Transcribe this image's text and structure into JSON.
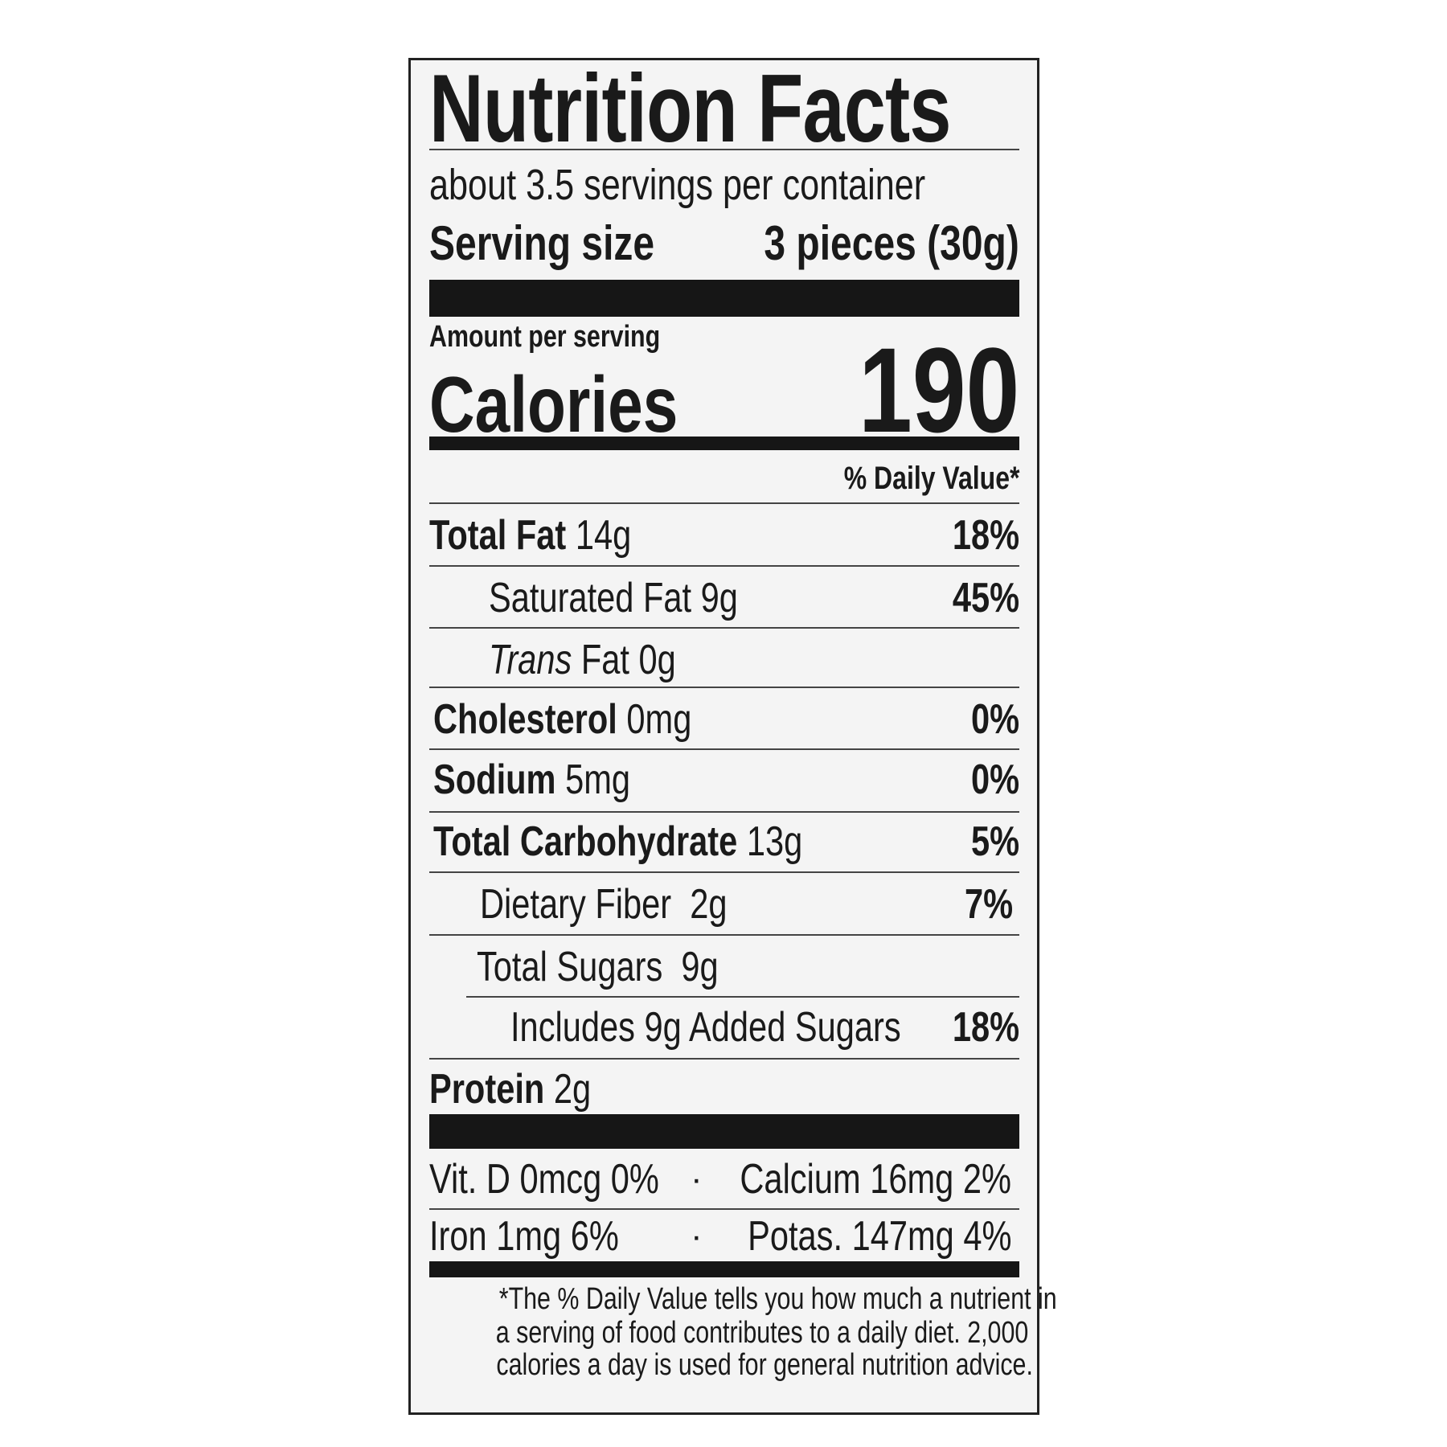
{
  "label": {
    "title": "Nutrition Facts",
    "servings_per_container": "about 3.5 servings per container",
    "serving_size_label": "Serving size",
    "serving_size_value": "3 pieces (30g)",
    "amount_per_serving": "Amount per serving",
    "calories_label": "Calories",
    "calories_value": "190",
    "daily_value_header": "% Daily Value*",
    "nutrients": [
      {
        "name": "Total Fat",
        "amount": "14g",
        "dv": "18%"
      },
      {
        "name": "Saturated Fat",
        "amount": "9g",
        "dv": "45%"
      },
      {
        "name": "Trans",
        "name_suffix": "Fat",
        "amount": "0g",
        "dv": ""
      },
      {
        "name": "Cholesterol",
        "amount": "0mg",
        "dv": "0%"
      },
      {
        "name": "Sodium",
        "amount": "5mg",
        "dv": "0%"
      },
      {
        "name": "Total Carbohydrate",
        "amount": "13g",
        "dv": "5%"
      },
      {
        "name": "Dietary Fiber",
        "amount": "2g",
        "dv": "7%"
      },
      {
        "name": "Total Sugars",
        "amount": "9g",
        "dv": ""
      },
      {
        "name": "Includes 9g Added Sugars",
        "amount": "",
        "dv": "18%"
      },
      {
        "name": "Protein",
        "amount": "2g",
        "dv": ""
      }
    ],
    "micronutrients": [
      {
        "left": "Vit. D 0mcg 0%",
        "separator": "·",
        "right": "Calcium 16mg 2%"
      },
      {
        "left": "Iron 1mg 6%",
        "separator": "·",
        "right": "Potas. 147mg 4%"
      }
    ],
    "footnote": [
      "*The % Daily Value tells you how much a nutrient in",
      "a serving of food contributes to a daily diet. 2,000",
      "calories a day is used for general nutrition advice."
    ]
  }
}
